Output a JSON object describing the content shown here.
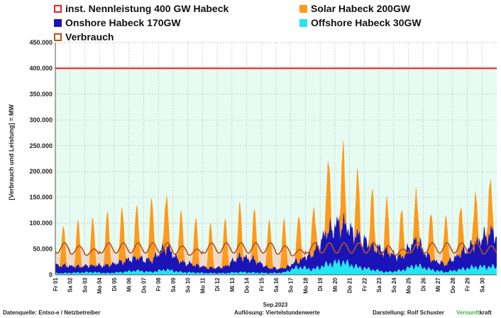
{
  "legend": [
    {
      "label": "inst. Nennleistung 400 GW Habeck",
      "color": "#e8242a",
      "kind": "outline"
    },
    {
      "label": "Solar Habeck 200GW",
      "color": "#ff9a1a",
      "kind": "fill"
    },
    {
      "label": "Onshore Habeck 170GW",
      "color": "#1a14b8",
      "kind": "fill"
    },
    {
      "label": "Offshore Habeck 30GW",
      "color": "#22e6f0",
      "kind": "fill"
    },
    {
      "label": "Verbrauch",
      "color": "#b4521c",
      "kind": "outline"
    }
  ],
  "footer": {
    "source": "Datenquelle: Entso-e  / Netzbetreiber",
    "resolution": "Auflösung: Viertelstundenwerte",
    "author": "Darstellung:  Rolf Schuster",
    "brand_green": "Vernunft",
    "brand_black": "kraft"
  },
  "chart_data": {
    "type": "area",
    "ylabel": "[Verbrauch und Leistung] = MW",
    "xlabel": "Sep.2023",
    "ylim": [
      0,
      450000
    ],
    "yticks": [
      "0",
      "50.000",
      "100.000",
      "150.000",
      "200.000",
      "250.000",
      "300.000",
      "350.000",
      "400.000",
      "450.000"
    ],
    "x": [
      "Fr 01",
      "Sa 02",
      "So 03",
      "Mo 04",
      "Di 05",
      "Mi 06",
      "Do 07",
      "Fr 08",
      "Sa 09",
      "So 10",
      "Mo 11",
      "Di 12",
      "Mi 13",
      "Do 14",
      "Fr 15",
      "Sa 16",
      "So 17",
      "Mo 18",
      "Di 19",
      "Mi 20",
      "Do 21",
      "Fr 22",
      "Sa 23",
      "So 24",
      "Mo 25",
      "Di 26",
      "Mi 27",
      "Do 28",
      "Fr 29",
      "Sa 30"
    ],
    "capacity_line": 400000,
    "colors": {
      "capacity": "#e8242a",
      "capacity_fill": "#e6fbf2",
      "solar": "#ff9a1a",
      "onshore": "#1a14b8",
      "offshore": "#22e6f0",
      "consumption": "#b4521c",
      "consumption_fill": "#ecdccd"
    },
    "series": [
      {
        "name": "Solar Habeck 200GW",
        "daily_peak": [
          75000,
          88000,
          92000,
          103000,
          107000,
          105000,
          125000,
          106000,
          100000,
          92000,
          85000,
          92000,
          100000,
          98000,
          95000,
          97000,
          92000,
          90000,
          140000,
          150000,
          120000,
          105000,
          98000,
          92000,
          97000,
          93000,
          97000,
          95000,
          98000,
          100000
        ]
      },
      {
        "name": "Onshore Habeck 170GW",
        "daily_avg": [
          15000,
          12000,
          13000,
          15000,
          20000,
          25000,
          22000,
          45000,
          20000,
          15000,
          10000,
          12000,
          30000,
          25000,
          10000,
          8000,
          12000,
          30000,
          65000,
          75000,
          60000,
          45000,
          40000,
          25000,
          50000,
          20000,
          15000,
          30000,
          45000,
          65000
        ]
      },
      {
        "name": "Offshore Habeck 30GW",
        "daily_avg": [
          3000,
          4000,
          5000,
          3000,
          5000,
          8000,
          5000,
          10000,
          5000,
          4000,
          3000,
          3000,
          5000,
          4000,
          3000,
          4000,
          15000,
          10000,
          20000,
          25000,
          15000,
          10000,
          5000,
          8000,
          18000,
          10000,
          5000,
          10000,
          15000,
          15000
        ]
      },
      {
        "name": "Verbrauch",
        "daily_min": [
          42000,
          40000,
          38000,
          42000,
          42000,
          42000,
          42000,
          42000,
          40000,
          38000,
          42000,
          42000,
          42000,
          42000,
          42000,
          40000,
          37000,
          42000,
          42000,
          42000,
          42000,
          42000,
          40000,
          38000,
          42000,
          42000,
          42000,
          42000,
          42000,
          40000
        ],
        "daily_max": [
          62000,
          56000,
          50000,
          62000,
          62000,
          62000,
          62000,
          62000,
          56000,
          50000,
          62000,
          62000,
          62000,
          62000,
          62000,
          56000,
          49000,
          62000,
          62000,
          62000,
          62000,
          62000,
          56000,
          50000,
          62000,
          62000,
          62000,
          62000,
          62000,
          56000
        ]
      }
    ]
  }
}
